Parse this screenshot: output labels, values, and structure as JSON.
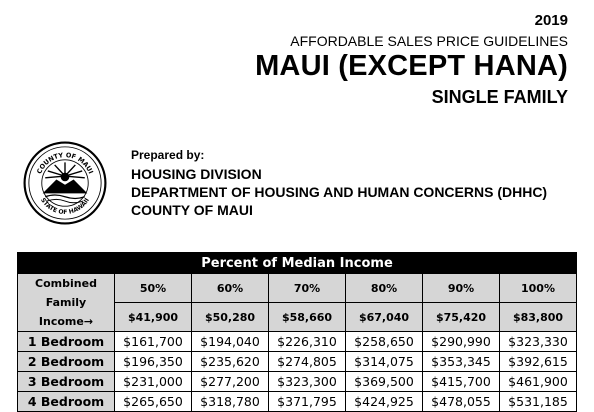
{
  "header": {
    "year": "2019",
    "subtitle": "AFFORDABLE SALES PRICE GUIDELINES",
    "title": "MAUI (EXCEPT HANA)",
    "property_type": "SINGLE FAMILY"
  },
  "seal": {
    "icon": "county-of-maui-seal-icon",
    "top_text": "COUNTY OF MAUI",
    "bottom_text": "STATE OF HAWAII"
  },
  "prepared": {
    "label": "Prepared by:",
    "lines": [
      "HOUSING DIVISION",
      "DEPARTMENT OF HOUSING AND HUMAN CONCERNS (DHHC)",
      "COUNTY OF MAUI"
    ]
  },
  "table": {
    "banner": "Percent of Median Income",
    "label_line1": "Combined",
    "label_line2": "Family Income→",
    "percents": [
      "50%",
      "60%",
      "70%",
      "80%",
      "90%",
      "100%"
    ],
    "incomes": [
      "$41,900",
      "$50,280",
      "$58,660",
      "$67,040",
      "$75,420",
      "$83,800"
    ],
    "rows": [
      {
        "label": "1 Bedroom",
        "values": [
          "$161,700",
          "$194,040",
          "$226,310",
          "$258,650",
          "$290,990",
          "$323,330"
        ]
      },
      {
        "label": "2 Bedroom",
        "values": [
          "$196,350",
          "$235,620",
          "$274,805",
          "$314,075",
          "$353,345",
          "$392,615"
        ]
      },
      {
        "label": "3 Bedroom",
        "values": [
          "$231,000",
          "$277,200",
          "$323,300",
          "$369,500",
          "$415,700",
          "$461,900"
        ]
      },
      {
        "label": "4 Bedroom",
        "values": [
          "$265,650",
          "$318,780",
          "$371,795",
          "$424,925",
          "$478,055",
          "$531,185"
        ]
      }
    ]
  }
}
